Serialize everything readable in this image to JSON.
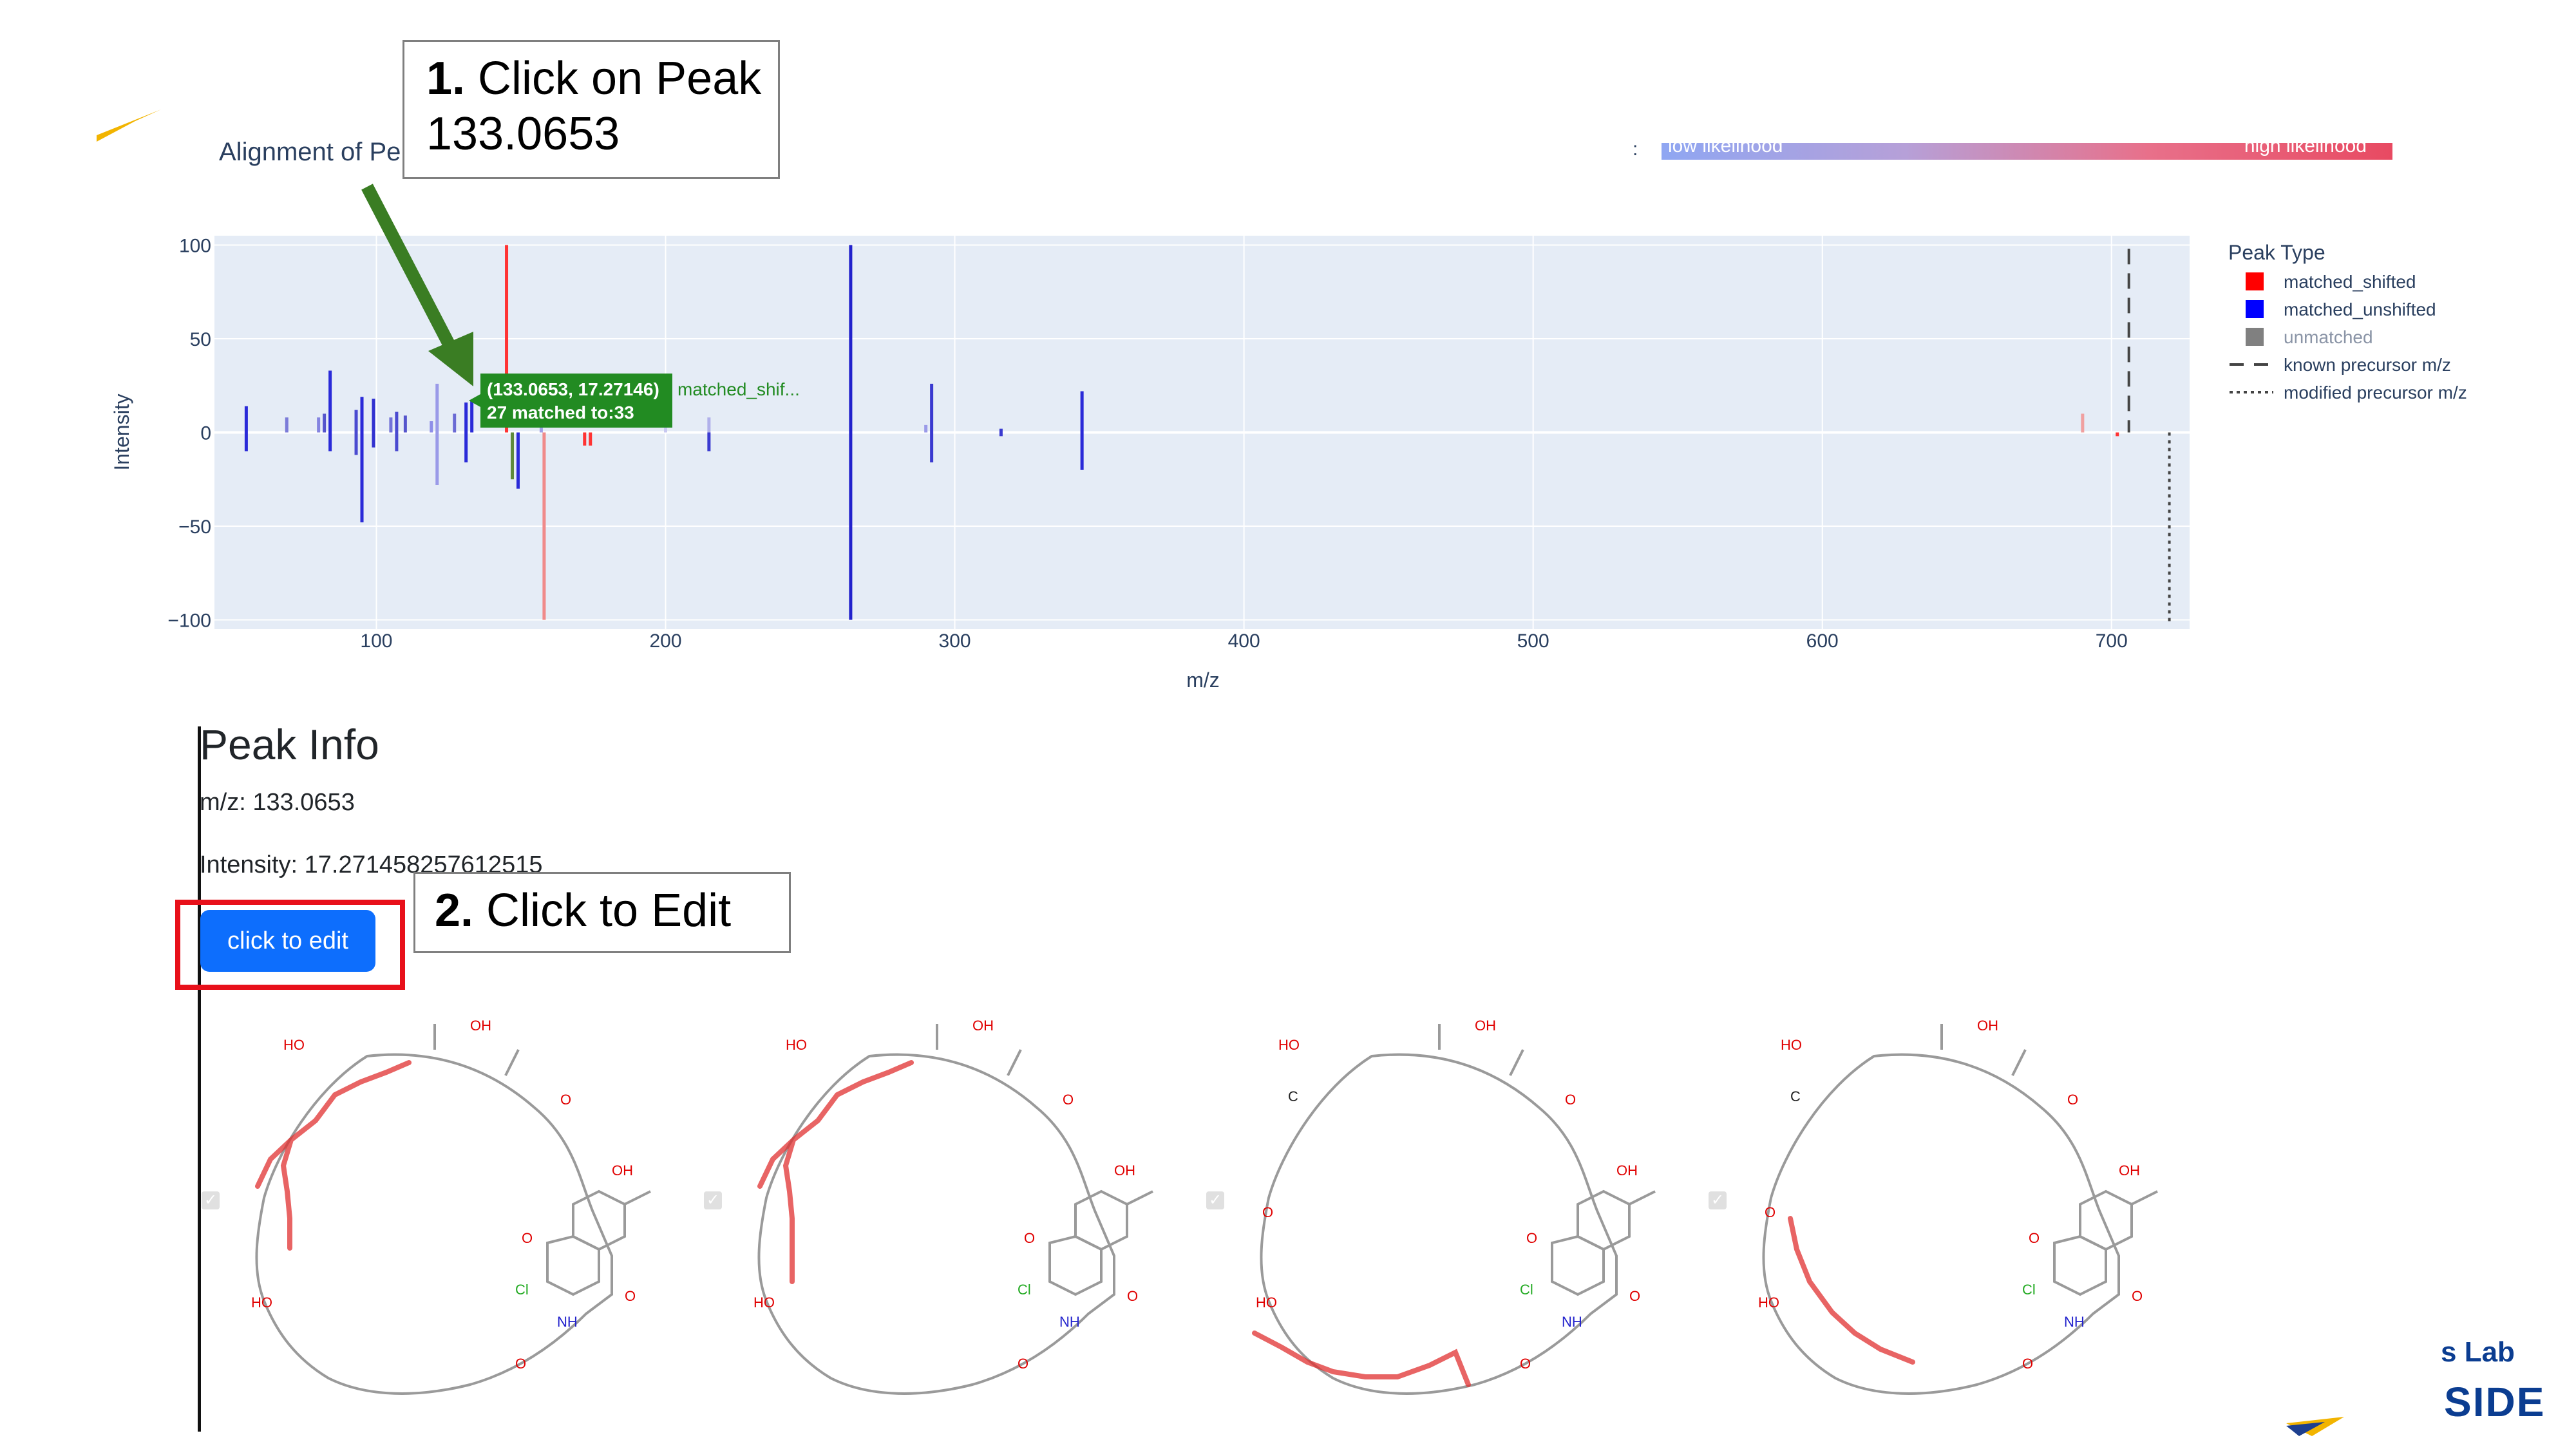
{
  "annotations": {
    "step1_num": "1.",
    "step1_text_line1": " Click on Peak",
    "step1_text_line2": "133.0653",
    "step2_num": "2.",
    "step2_text": " Click to Edit"
  },
  "plot": {
    "title": "Alignment of Pe",
    "colorbar_separator": ":",
    "colorbar_left_label": "low likelihood",
    "colorbar_right_label": "high likelihood"
  },
  "chart_data": {
    "type": "bar",
    "xlabel": "m/z",
    "ylabel": "Intensity",
    "xlim": [
      44,
      727
    ],
    "ylim": [
      -105,
      105
    ],
    "x_ticks": [
      "100",
      "200",
      "300",
      "400",
      "500",
      "600",
      "700"
    ],
    "y_ticks": [
      "100",
      "50",
      "0",
      "−50",
      "−100"
    ],
    "grid": true,
    "legend_title": "Peak Type",
    "legend_position": "right",
    "legend": [
      {
        "name": "matched_shifted",
        "color": "#ff0000",
        "kind": "square"
      },
      {
        "name": "matched_unshifted",
        "color": "#0000ff",
        "kind": "square"
      },
      {
        "name": "unmatched",
        "color": "#808080",
        "kind": "square"
      },
      {
        "name": "known precursor m/z",
        "color": "#444444",
        "kind": "dash"
      },
      {
        "name": "modified precursor m/z",
        "color": "#444444",
        "kind": "dot"
      }
    ],
    "top_peaks": [
      {
        "x": 55,
        "y": 14,
        "c": "#2a2ad8"
      },
      {
        "x": 69,
        "y": 8,
        "c": "#7b7bd8"
      },
      {
        "x": 80,
        "y": 8,
        "c": "#8484e0"
      },
      {
        "x": 82,
        "y": 10,
        "c": "#5555cc"
      },
      {
        "x": 84,
        "y": 33,
        "c": "#2a2ad8"
      },
      {
        "x": 93,
        "y": 12,
        "c": "#4a4ad0"
      },
      {
        "x": 95,
        "y": 19,
        "c": "#2a2ad8"
      },
      {
        "x": 99,
        "y": 18,
        "c": "#3232d0"
      },
      {
        "x": 105,
        "y": 8,
        "c": "#7272d8"
      },
      {
        "x": 107,
        "y": 11,
        "c": "#4a4ad0"
      },
      {
        "x": 110,
        "y": 9,
        "c": "#5555cc"
      },
      {
        "x": 119,
        "y": 6,
        "c": "#8e8ee8"
      },
      {
        "x": 121,
        "y": 26,
        "c": "#9a9ae8"
      },
      {
        "x": 127,
        "y": 10,
        "c": "#6a6ad4"
      },
      {
        "x": 131,
        "y": 16,
        "c": "#2a2ad8"
      },
      {
        "x": 133,
        "y": 17,
        "c": "#2a2ad8"
      },
      {
        "x": 145,
        "y": 100,
        "c": "#ff3333"
      },
      {
        "x": 157,
        "y": 6,
        "c": "#a0a0e8"
      },
      {
        "x": 200,
        "y": 6,
        "c": "#c8c8f0"
      },
      {
        "x": 215,
        "y": 8,
        "c": "#b0b0ea"
      },
      {
        "x": 264,
        "y": 100,
        "c": "#2222cc"
      },
      {
        "x": 290,
        "y": 4,
        "c": "#9a9ae8"
      },
      {
        "x": 292,
        "y": 26,
        "c": "#3a3ad0"
      },
      {
        "x": 316,
        "y": 2,
        "c": "#3a3ad0"
      },
      {
        "x": 344,
        "y": 22,
        "c": "#2a2ad8"
      },
      {
        "x": 690,
        "y": 10,
        "c": "#f0a0a0"
      }
    ],
    "bottom_peaks": [
      {
        "x": 55,
        "y": -10,
        "c": "#2a2ad8"
      },
      {
        "x": 84,
        "y": -10,
        "c": "#2a2ad8"
      },
      {
        "x": 93,
        "y": -12,
        "c": "#4a4ad0"
      },
      {
        "x": 95,
        "y": -48,
        "c": "#2a2ad8"
      },
      {
        "x": 99,
        "y": -8,
        "c": "#3232d0"
      },
      {
        "x": 107,
        "y": -10,
        "c": "#4a4ad0"
      },
      {
        "x": 121,
        "y": -28,
        "c": "#9a9ae8"
      },
      {
        "x": 131,
        "y": -16,
        "c": "#2a2ad8"
      },
      {
        "x": 147,
        "y": -25,
        "c": "#5e8a3a"
      },
      {
        "x": 149,
        "y": -30,
        "c": "#2a2ad8"
      },
      {
        "x": 158,
        "y": -100,
        "c": "#f08a8a"
      },
      {
        "x": 172,
        "y": -7,
        "c": "#ff3333"
      },
      {
        "x": 174,
        "y": -7,
        "c": "#ff3333"
      },
      {
        "x": 215,
        "y": -10,
        "c": "#3a3ad0"
      },
      {
        "x": 264,
        "y": -100,
        "c": "#2222cc"
      },
      {
        "x": 292,
        "y": -16,
        "c": "#3a3ad0"
      },
      {
        "x": 316,
        "y": -2,
        "c": "#3a3ad0"
      },
      {
        "x": 344,
        "y": -20,
        "c": "#2a2ad8"
      },
      {
        "x": 702,
        "y": -2,
        "c": "#ff3333"
      }
    ],
    "known_precursor_mz": 706,
    "modified_precursor_mz": 720,
    "hover": {
      "label": "(133.0653, 17.27146)",
      "label2": "27 matched to:33",
      "trace": "matched_shif..."
    }
  },
  "peak_info": {
    "title": "Peak Info",
    "mz": "m/z: 133.0653",
    "intensity": "Intensity: 17.271458257612515",
    "edit_button": "click to edit"
  },
  "structures": [
    {
      "checked": true
    },
    {
      "checked": true
    },
    {
      "checked": true
    },
    {
      "checked": true
    }
  ],
  "atoms": {
    "oh": "OH",
    "ho": "HO",
    "o": "O",
    "cl": "Cl",
    "nh": "NH",
    "c": "C"
  },
  "branding": {
    "lab": "s Lab",
    "side": "SIDE"
  },
  "colors": {
    "accent": "#0d6efd",
    "callout_arrow": "#3a7d23",
    "highlight": "#e03030",
    "hover_bg": "#228b22"
  }
}
